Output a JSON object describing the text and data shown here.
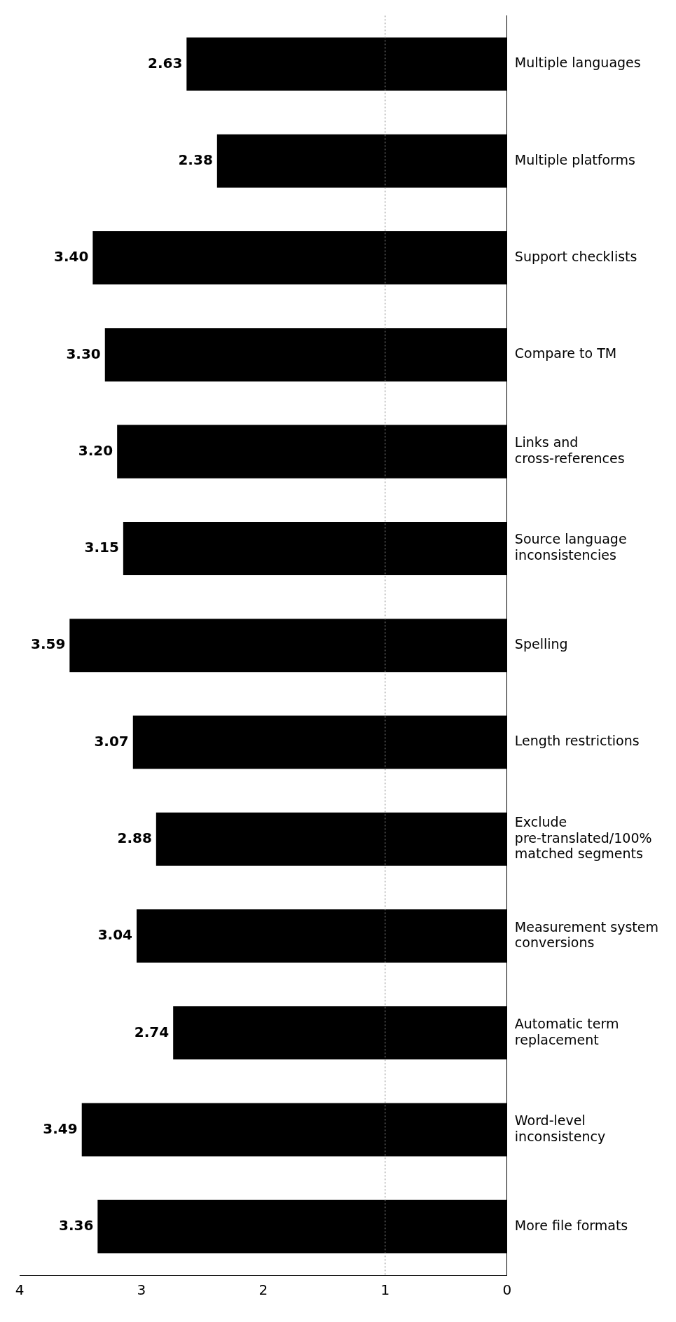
{
  "chart_data": {
    "type": "bar",
    "orientation": "horizontal",
    "categories": [
      "Multiple languages",
      "Multiple platforms",
      "Support checklists",
      "Compare to TM",
      "Links and cross-references",
      "Source language inconsistencies",
      "Spelling",
      "Length restrictions",
      "Exclude pre-translated/100% matched segments",
      "Measurement system conversions",
      "Automatic term replacement",
      "Word-level inconsistency",
      "More file formats"
    ],
    "values": [
      2.63,
      2.38,
      3.4,
      3.3,
      3.2,
      3.15,
      3.59,
      3.07,
      2.88,
      3.04,
      2.74,
      3.49,
      3.36
    ],
    "color": "#000000",
    "value_labels": [
      "2.63",
      "2.38",
      "3.40",
      "3.30",
      "3.20",
      "3.15",
      "3.59",
      "3.07",
      "2.88",
      "3.04",
      "2.74",
      "3.49",
      "3.36"
    ],
    "xlim": [
      4,
      0
    ],
    "xticks": [
      0,
      1,
      2,
      3,
      4
    ],
    "ref_lines": [
      {
        "axis": "x",
        "value": 1,
        "color": "#888888",
        "line_style": "dotted"
      }
    ]
  }
}
